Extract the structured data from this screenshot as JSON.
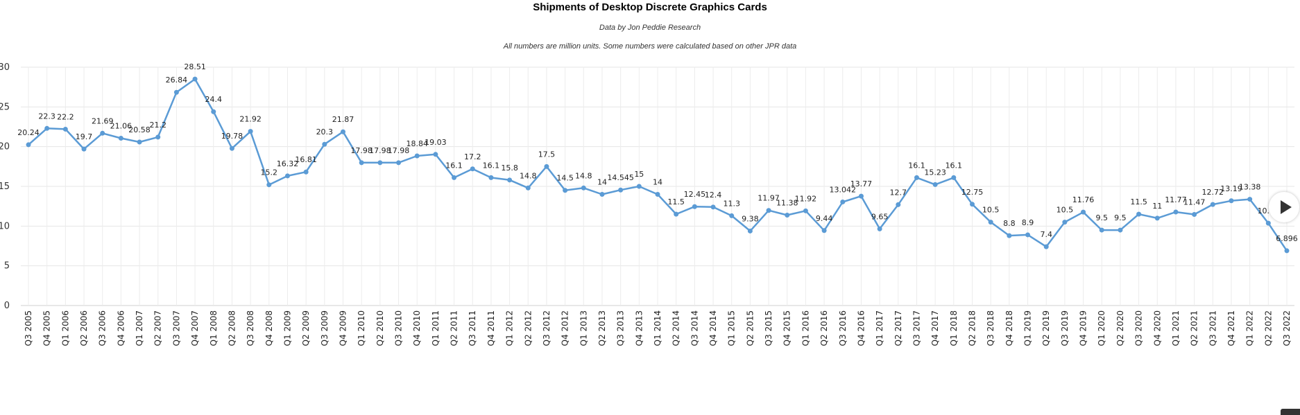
{
  "chart_data": {
    "type": "line",
    "title": "Shipments of Desktop Discrete Graphics Cards",
    "subtitle": "Data by Jon Peddie Research",
    "note": "All numbers are million units. Some numbers were calculated based on other JPR data",
    "xlabel": "",
    "ylabel": "",
    "ylim": [
      0,
      30
    ],
    "yticks": [
      0,
      5,
      10,
      15,
      20,
      25,
      30
    ],
    "grid": true,
    "color": "#5b9bd5",
    "categories": [
      "Q3 2005",
      "Q4 2005",
      "Q1 2006",
      "Q2 2006",
      "Q3 2006",
      "Q4 2006",
      "Q1 2007",
      "Q2 2007",
      "Q3 2007",
      "Q4 2007",
      "Q1 2008",
      "Q2 2008",
      "Q3 2008",
      "Q4 2008",
      "Q1 2009",
      "Q2 2009",
      "Q3 2009",
      "Q4 2009",
      "Q1 2010",
      "Q2 2010",
      "Q3 2010",
      "Q4 2010",
      "Q1 2011",
      "Q2 2011",
      "Q3 2011",
      "Q4 2011",
      "Q1 2012",
      "Q2 2012",
      "Q3 2012",
      "Q4 2012",
      "Q1 2013",
      "Q2 2013",
      "Q3 2013",
      "Q4 2013",
      "Q1 2014",
      "Q2 2014",
      "Q3 2014",
      "Q4 2014",
      "Q1 2015",
      "Q2 2015",
      "Q3 2015",
      "Q4 2015",
      "Q1 2016",
      "Q2 2016",
      "Q3 2016",
      "Q4 2016",
      "Q1 2017",
      "Q2 2017",
      "Q3 2017",
      "Q4 2017",
      "Q1 2018",
      "Q2 2018",
      "Q3 2018",
      "Q4 2018",
      "Q1 2019",
      "Q2 2019",
      "Q3 2019",
      "Q4 2019",
      "Q1 2020",
      "Q2 2020",
      "Q3 2020",
      "Q4 2020",
      "Q1 2021",
      "Q2 2021",
      "Q3 2021",
      "Q4 2021",
      "Q1 2022",
      "Q2 2022",
      "Q3 2022"
    ],
    "values": [
      20.24,
      22.3,
      22.2,
      19.7,
      21.69,
      21.06,
      20.58,
      21.2,
      26.84,
      28.51,
      24.4,
      19.78,
      21.92,
      15.2,
      16.32,
      16.81,
      20.3,
      21.87,
      17.98,
      17.98,
      17.98,
      18.84,
      19.03,
      16.1,
      17.2,
      16.1,
      15.8,
      14.8,
      17.5,
      14.5,
      14.8,
      14,
      14.545,
      15,
      14,
      11.5,
      12.45,
      12.4,
      11.3,
      9.38,
      11.97,
      11.38,
      11.92,
      9.44,
      13.042,
      13.77,
      9.65,
      12.7,
      16.1,
      15.23,
      16.1,
      12.75,
      10.5,
      8.8,
      8.9,
      7.4,
      10.5,
      11.76,
      9.5,
      9.5,
      11.5,
      11,
      11.77,
      11.47,
      12.72,
      13.19,
      13.38,
      10.37,
      6.896
    ],
    "labels": [
      "20.24",
      "22.3",
      "22.2",
      "19.7",
      "21.69",
      "21.06",
      "20.58",
      "21.2",
      "26.84",
      "28.51",
      "24.4",
      "19.78",
      "21.92",
      "15.2",
      "16.32",
      "16.81",
      "20.3",
      "21.87",
      "17.98",
      "17.98",
      "17.98",
      "18.84",
      "19.03",
      "16.1",
      "17.2",
      "16.1",
      "15.8",
      "14.8",
      "17.5",
      "14.5",
      "14.8",
      "14",
      "14.545",
      "15",
      "14",
      "11.5",
      "12.45",
      "12.4",
      "11.3",
      "9.38",
      "11.97",
      "11.38",
      "11.92",
      "9.44",
      "13.042",
      "13.77",
      "9.65",
      "12.7",
      "16.1",
      "15.23",
      "16.1",
      "12.75",
      "10.5",
      "8.8",
      "8.9",
      "7.4",
      "10.5",
      "11.76",
      "9.5",
      "9.5",
      "11.5",
      "11",
      "11.77",
      "11.47",
      "12.72",
      "13.19",
      "13.38",
      "10.37",
      "6.896"
    ]
  },
  "controls": {
    "play_icon": "play-triangle-icon"
  }
}
